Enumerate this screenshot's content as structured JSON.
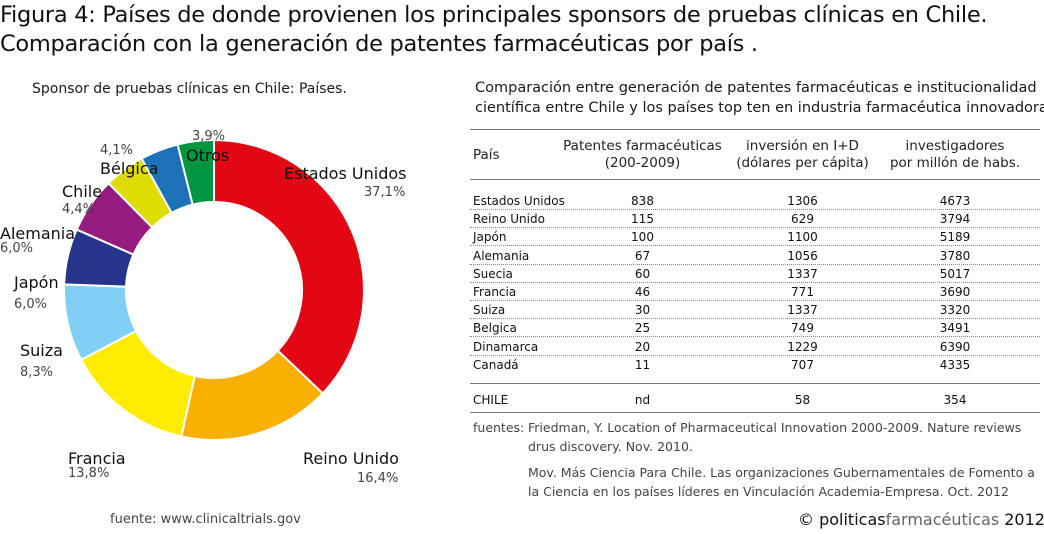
{
  "figure": {
    "label": "Figura 4:",
    "title_line1": "Países de donde provienen los principales sponsors de pruebas clínicas en Chile.",
    "title_line2": "Comparación con la generación de patentes farmacéuticas por país ."
  },
  "chart_data": [
    {
      "type": "pie",
      "title": "Sponsor de pruebas clínicas en Chile: Países.",
      "donut": true,
      "slices": [
        {
          "label": "Estados Unidos",
          "value": 37.1,
          "display": "37,1%",
          "color": "#e30613"
        },
        {
          "label": "Reino Unido",
          "value": 16.4,
          "display": "16,4%",
          "color": "#f9b000"
        },
        {
          "label": "Francia",
          "value": 13.8,
          "display": "13,8%",
          "color": "#ffec00"
        },
        {
          "label": "Suiza",
          "value": 8.3,
          "display": "8,3%",
          "color": "#82cff5"
        },
        {
          "label": "Japón",
          "value": 6.0,
          "display": "6,0%",
          "color": "#27348b"
        },
        {
          "label": "Alemania",
          "value": 6.0,
          "display": "6,0%",
          "color": "#951b81"
        },
        {
          "label": "Chile",
          "value": 4.4,
          "display": "4,4%",
          "color": "#dedc00"
        },
        {
          "label": "Bélgica",
          "value": 4.1,
          "display": "4,1%",
          "color": "#1d71b8"
        },
        {
          "label": "Otros",
          "value": 3.9,
          "display": "3,9%",
          "color": "#009640"
        }
      ],
      "source": "fuente: www.clinicaltrials.gov"
    },
    {
      "type": "table",
      "title_line1": "Comparación entre generación de patentes farmacéuticas e institucionalidad",
      "title_line2": "científica entre Chile y los países top ten en industria farmacéutica innovadora",
      "columns": [
        {
          "line1": "País",
          "line2": ""
        },
        {
          "line1": "Patentes farmacéuticas",
          "line2": "(200-2009)"
        },
        {
          "line1": "inversión en I+D",
          "line2": "(dólares per cápita)"
        },
        {
          "line1": "investigadores",
          "line2": "por millón de habs."
        }
      ],
      "rows": [
        [
          "Estados Unidos",
          "838",
          "1306",
          "4673"
        ],
        [
          "Reino Unido",
          "115",
          "629",
          "3794"
        ],
        [
          "Japón",
          "100",
          "1100",
          "5189"
        ],
        [
          "Alemania",
          "67",
          "1056",
          "3780"
        ],
        [
          "Suecia",
          "60",
          "1337",
          "5017"
        ],
        [
          "Francia",
          "46",
          "771",
          "3690"
        ],
        [
          "Suiza",
          "30",
          "1337",
          "3320"
        ],
        [
          "Belgica",
          "25",
          "749",
          "3491"
        ],
        [
          "Dinamarca",
          "20",
          "1229",
          "6390"
        ],
        [
          "Canadá",
          "11",
          "707",
          "4335"
        ]
      ],
      "chile_row": [
        "CHILE",
        "nd",
        "58",
        "354"
      ]
    }
  ],
  "sources": {
    "label": "fuentes:",
    "s1_line1": "Friedman, Y. Location of Pharmaceutical Innovation 2000-2009. Nature reviews",
    "s1_line2": "drus discovery. Nov. 2010.",
    "s2_line1": "Mov. Más Ciencia Para Chile. Las organizaciones Gubernamentales de Fomento a",
    "s2_line2": "la Ciencia en los países líderes en Vinculación Academia-Empresa. Oct. 2012"
  },
  "copyright": {
    "symbol": "©",
    "part1": "politicas",
    "part2": "farmacéuticas",
    "year": "2012"
  }
}
